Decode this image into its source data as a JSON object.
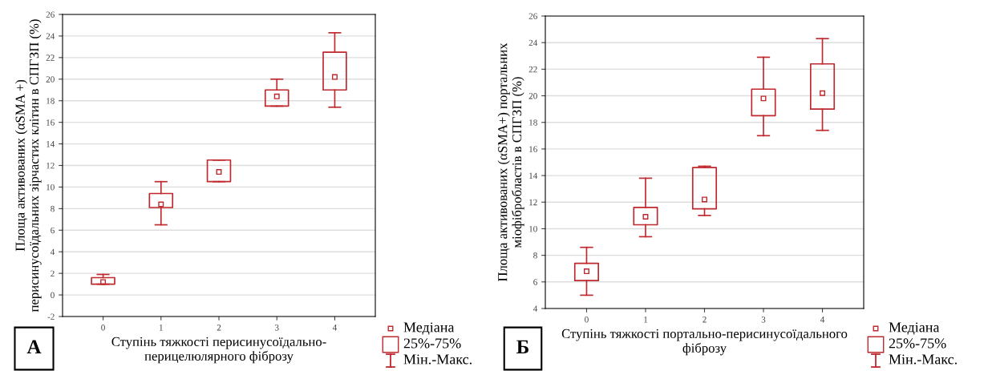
{
  "chart_data": [
    {
      "type": "box",
      "xlabel": "Ступінь тяжкості перисинусоїдально-\nперицелюлярного фіброзу",
      "ylabel": "Площа активованих (αSMA +)\nперисинусоїдальних зірчастих клітин в СПГЗП (%)",
      "categories": [
        "0",
        "1",
        "2",
        "3",
        "4"
      ],
      "ylim": [
        -2,
        26
      ],
      "yticks": [
        -2,
        0,
        2,
        4,
        6,
        8,
        10,
        12,
        14,
        16,
        18,
        20,
        22,
        24,
        26
      ],
      "grid": "y",
      "annotations": [
        "А",
        "Медіана",
        "25%-75%",
        "Мін.-Макс."
      ],
      "series": [
        {
          "color": "#c0282d",
          "boxes": [
            {
              "low": 1.0,
              "q1": 1.0,
              "median": 1.2,
              "q3": 1.6,
              "high": 1.9
            },
            {
              "low": 6.5,
              "q1": 8.1,
              "median": 8.4,
              "q3": 9.4,
              "high": 10.5
            },
            {
              "low": 10.5,
              "q1": 10.5,
              "median": 11.4,
              "q3": 12.5,
              "high": 12.5
            },
            {
              "low": 17.5,
              "q1": 17.5,
              "median": 18.4,
              "q3": 19.0,
              "high": 20.0
            },
            {
              "low": 17.4,
              "q1": 19.0,
              "median": 20.2,
              "q3": 22.5,
              "high": 24.3
            }
          ]
        }
      ]
    },
    {
      "type": "box",
      "xlabel": "Ступінь тяжкості портально-перисинусоїдального\nфіброзу",
      "ylabel": "Площа активованих (αSMA+) портальних\nміофібробластів в СПГЗП (%)",
      "categories": [
        "0",
        "1",
        "2",
        "3",
        "4"
      ],
      "ylim": [
        4,
        26
      ],
      "yticks": [
        4,
        6,
        8,
        10,
        12,
        14,
        16,
        18,
        20,
        22,
        24,
        26
      ],
      "grid": "y",
      "annotations": [
        "Б",
        "Медіана",
        "25%-75%",
        "Мін.-Макс."
      ],
      "series": [
        {
          "color": "#c0282d",
          "boxes": [
            {
              "low": 5.0,
              "q1": 6.1,
              "median": 6.8,
              "q3": 7.4,
              "high": 8.6
            },
            {
              "low": 9.4,
              "q1": 10.3,
              "median": 10.9,
              "q3": 11.6,
              "high": 13.8
            },
            {
              "low": 11.0,
              "q1": 11.5,
              "median": 12.2,
              "q3": 14.6,
              "high": 14.7
            },
            {
              "low": 17.0,
              "q1": 18.5,
              "median": 19.8,
              "q3": 20.5,
              "high": 22.9
            },
            {
              "low": 17.4,
              "q1": 19.0,
              "median": 20.2,
              "q3": 22.4,
              "high": 24.3
            }
          ]
        }
      ]
    }
  ]
}
